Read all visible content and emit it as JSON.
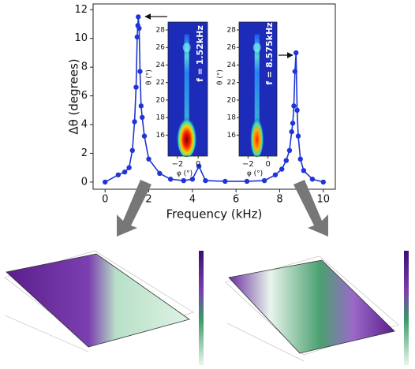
{
  "chart_data": [
    {
      "type": "line",
      "xlabel": "Frequency (kHz)",
      "ylabel": "Δθ (degrees)",
      "x": [
        0,
        0.6,
        0.9,
        1.1,
        1.25,
        1.35,
        1.42,
        1.47,
        1.5,
        1.52,
        1.56,
        1.6,
        1.65,
        1.7,
        1.8,
        2.0,
        2.5,
        3.0,
        3.6,
        4.0,
        4.3,
        4.6,
        5.5,
        6.5,
        7.3,
        7.8,
        8.1,
        8.3,
        8.45,
        8.55,
        8.6,
        8.65,
        8.7,
        8.75,
        8.8,
        8.85,
        8.95,
        9.1,
        9.5,
        10
      ],
      "values": [
        0,
        0.5,
        0.7,
        1.0,
        2.2,
        4.2,
        6.6,
        10.1,
        10.9,
        11.5,
        10.7,
        7.7,
        5.3,
        4.5,
        3.2,
        1.6,
        0.6,
        0.2,
        0.1,
        0.2,
        1.1,
        0.1,
        0.05,
        0.05,
        0.1,
        0.5,
        0.9,
        1.5,
        2.2,
        3.5,
        4.1,
        5.3,
        7.7,
        9.0,
        5.0,
        3.2,
        1.6,
        0.8,
        0.2,
        0
      ],
      "color": "#1f35d6",
      "xlim": [
        -0.55,
        10.55
      ],
      "ylim": [
        -0.5,
        12.4
      ],
      "xticks": [
        0,
        2,
        4,
        6,
        8,
        10
      ],
      "yticks": [
        0,
        2,
        4,
        6,
        8,
        10,
        12
      ]
    },
    {
      "type": "heatmap",
      "annotation": "f = 1.52kHz",
      "xlabel": "φ (°)",
      "ylabel": "θ (°)",
      "xlim": [
        -2.9,
        0.9
      ],
      "ylim": [
        13.6,
        28.9
      ],
      "xticks": [
        {
          "value": -2,
          "label": "−2"
        },
        0
      ],
      "yticks": [
        16,
        18,
        20,
        22,
        24,
        26,
        28
      ]
    },
    {
      "type": "heatmap",
      "annotation": "f = 8.575kHz",
      "xlabel": "φ (°)",
      "ylabel": "θ (°)",
      "xlim": [
        -2.9,
        0.9
      ],
      "ylim": [
        13.6,
        28.9
      ],
      "xticks": [
        {
          "value": -2,
          "label": "−2"
        },
        0
      ],
      "yticks": [
        16,
        18,
        20,
        22,
        24,
        26,
        28
      ]
    }
  ]
}
